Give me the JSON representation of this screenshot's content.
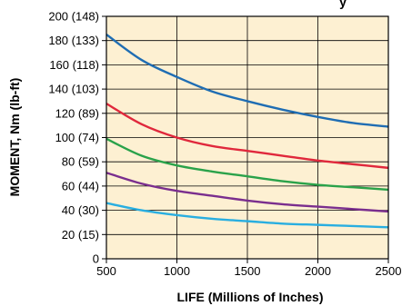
{
  "chart_data": {
    "type": "line",
    "title": "y",
    "xlabel": "LIFE (Millions of Inches)",
    "ylabel": "MOMENT, Nm (lb-ft)",
    "xlim": [
      500,
      2500
    ],
    "ylim": [
      0,
      200
    ],
    "x_ticks": [
      {
        "value": 500,
        "label": "500"
      },
      {
        "value": 1000,
        "label": "1000"
      },
      {
        "value": 1500,
        "label": "1500"
      },
      {
        "value": 2000,
        "label": "2000"
      },
      {
        "value": 2500,
        "label": "2500"
      }
    ],
    "y_ticks": [
      {
        "value": 0,
        "label": "0"
      },
      {
        "value": 20,
        "label": "20 (15)"
      },
      {
        "value": 40,
        "label": "40 (30)"
      },
      {
        "value": 60,
        "label": "60 (44)"
      },
      {
        "value": 80,
        "label": "80 (59)"
      },
      {
        "value": 100,
        "label": "100 (74)"
      },
      {
        "value": 120,
        "label": "120 (89)"
      },
      {
        "value": 140,
        "label": "140 (103)"
      },
      {
        "value": 160,
        "label": "160 (118)"
      },
      {
        "value": 180,
        "label": "180 (133)"
      },
      {
        "value": 200,
        "label": "200 (148)"
      }
    ],
    "grid": true,
    "background_color": "#fdf0d2",
    "x": [
      500,
      750,
      1000,
      1250,
      1500,
      1750,
      2000,
      2250,
      2500
    ],
    "series": [
      {
        "color": "#1f6db3",
        "values": [
          185,
          164,
          150,
          138,
          130,
          123,
          117,
          112,
          109
        ]
      },
      {
        "color": "#e0283c",
        "values": [
          128,
          111,
          100,
          93,
          89,
          85,
          81,
          78,
          75
        ]
      },
      {
        "color": "#2aa24a",
        "values": [
          99,
          85,
          77,
          72,
          68,
          64,
          61,
          59,
          57
        ]
      },
      {
        "color": "#7a2e8e",
        "values": [
          71,
          62,
          56,
          52,
          48,
          45,
          43,
          41,
          39
        ]
      },
      {
        "color": "#29aee0",
        "values": [
          46,
          40,
          36,
          33,
          31,
          29,
          28,
          27,
          26
        ]
      }
    ]
  }
}
